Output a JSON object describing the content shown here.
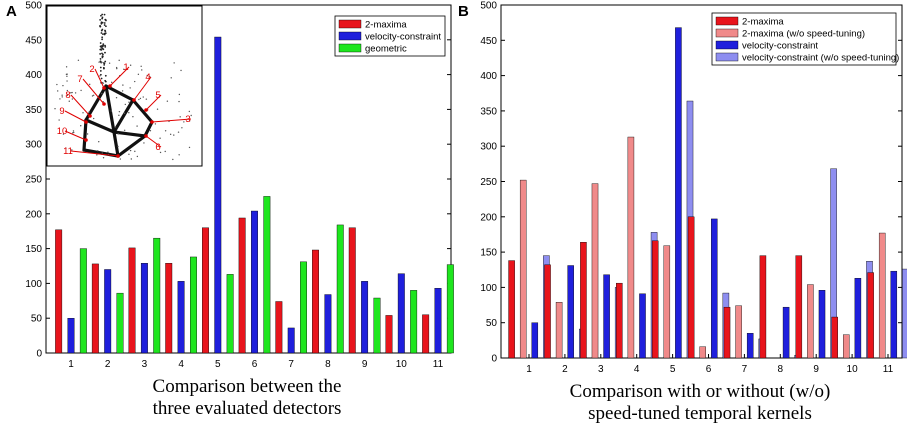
{
  "chart_data": [
    {
      "type": "bar",
      "panel_label": "A",
      "caption_lines": [
        "Comparison between the",
        "three evaluated detectors"
      ],
      "categories": [
        "1",
        "2",
        "3",
        "4",
        "5",
        "6",
        "7",
        "8",
        "9",
        "10",
        "11"
      ],
      "ylim": [
        0,
        500
      ],
      "yticks": [
        0,
        50,
        100,
        150,
        200,
        250,
        300,
        350,
        400,
        450,
        500
      ],
      "legend_position": "top-right",
      "series": [
        {
          "name": "2-maxima",
          "color": "#e8141c",
          "values": [
            177,
            128,
            151,
            129,
            180,
            194,
            74,
            148,
            180,
            54,
            55
          ]
        },
        {
          "name": "velocity-constraint",
          "color": "#1f1fdc",
          "values": [
            50,
            120,
            129,
            103,
            454,
            204,
            36,
            84,
            103,
            114,
            93
          ]
        },
        {
          "name": "geometric",
          "color": "#1ee61e",
          "values": [
            150,
            86,
            165,
            138,
            113,
            225,
            131,
            184,
            79,
            90,
            127
          ]
        }
      ],
      "inset": {
        "description": "point cloud",
        "labels": [
          "1",
          "2",
          "3",
          "4",
          "5",
          "6",
          "7",
          "8",
          "9",
          "10",
          "11"
        ],
        "color": "#e00000"
      }
    },
    {
      "type": "bar",
      "panel_label": "B",
      "caption_lines": [
        "Comparison with or without (w/o)",
        "speed-tuned temporal kernels"
      ],
      "categories": [
        "1",
        "2",
        "3",
        "4",
        "5",
        "6",
        "7",
        "8",
        "9",
        "10",
        "11"
      ],
      "ylim": [
        0,
        500
      ],
      "yticks": [
        0,
        50,
        100,
        150,
        200,
        250,
        300,
        350,
        400,
        450,
        500
      ],
      "legend_position": "top-right",
      "series": [
        {
          "name": "2-maxima",
          "color": "#e8141c",
          "values": [
            138,
            132,
            164,
            106,
            166,
            200,
            72,
            145,
            145,
            58,
            121
          ]
        },
        {
          "name": "2-maxima (w/o speed-tuning)",
          "color": "#f08a8a",
          "values": [
            252,
            79,
            247,
            313,
            159,
            16,
            74,
            0,
            104,
            33,
            177
          ]
        },
        {
          "name": "velocity-constraint",
          "color": "#1f1fdc",
          "values": [
            50,
            131,
            118,
            91,
            468,
            197,
            35,
            72,
            96,
            113,
            123
          ]
        },
        {
          "name": "velocity-constraint (w/o speed-tuning)",
          "color": "#8e8ef0",
          "values": [
            145,
            41,
            100,
            178,
            364,
            92,
            27,
            4,
            268,
            137,
            126
          ]
        }
      ]
    }
  ]
}
